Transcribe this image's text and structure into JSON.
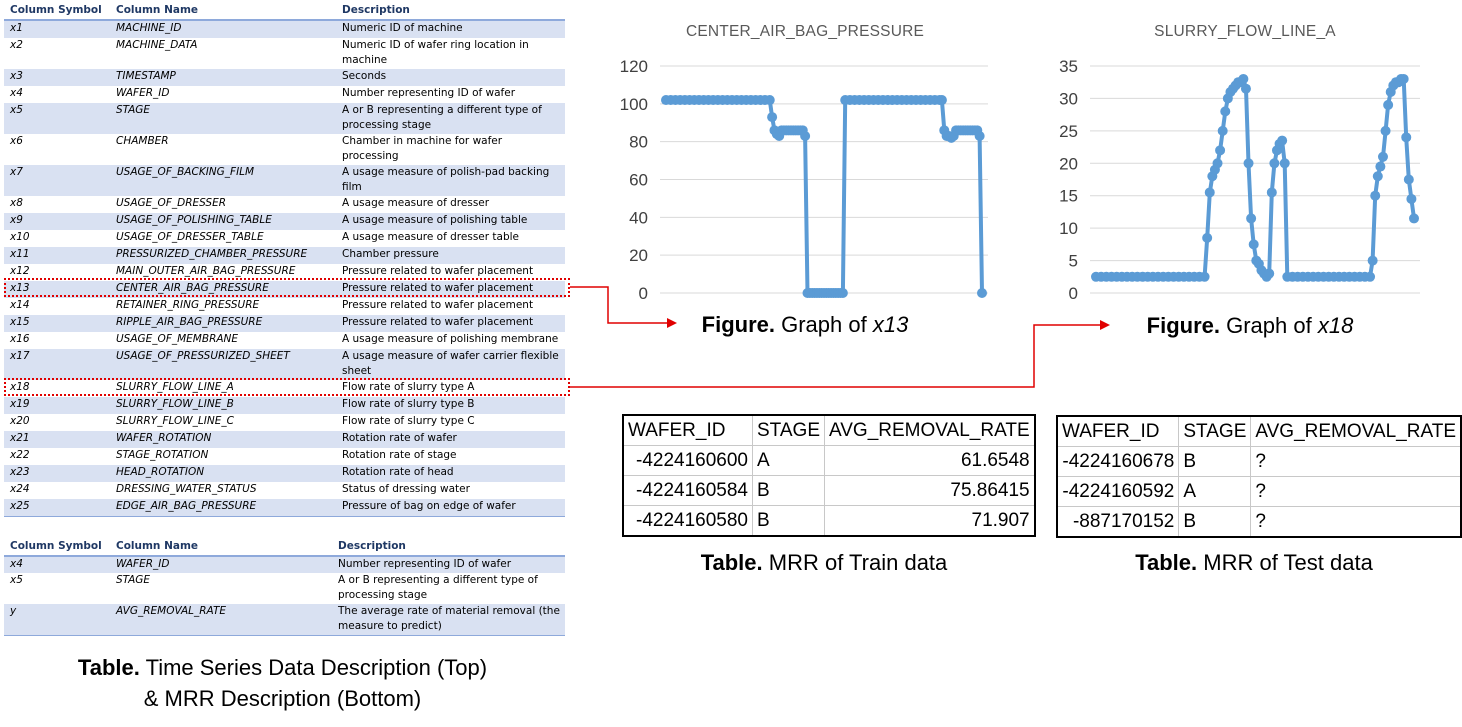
{
  "time_series_table": {
    "headers": [
      "Column Symbol",
      "Column Name",
      "Description"
    ],
    "rows": [
      {
        "symbol": "x1",
        "name": "MACHINE_ID",
        "description": "Numeric ID of machine"
      },
      {
        "symbol": "x2",
        "name": "MACHINE_DATA",
        "description": "Numeric ID of wafer ring location in machine"
      },
      {
        "symbol": "x3",
        "name": "TIMESTAMP",
        "description": "Seconds"
      },
      {
        "symbol": "x4",
        "name": "WAFER_ID",
        "description": "Number representing ID of wafer"
      },
      {
        "symbol": "x5",
        "name": "STAGE",
        "description": "A or B representing a different type of processing stage"
      },
      {
        "symbol": "x6",
        "name": "CHAMBER",
        "description": "Chamber in machine for wafer processing"
      },
      {
        "symbol": "x7",
        "name": "USAGE_OF_BACKING_FILM",
        "description": "A usage measure of polish-pad backing film"
      },
      {
        "symbol": "x8",
        "name": "USAGE_OF_DRESSER",
        "description": "A usage measure of dresser"
      },
      {
        "symbol": "x9",
        "name": "USAGE_OF_POLISHING_TABLE",
        "description": "A usage measure of polishing table"
      },
      {
        "symbol": "x10",
        "name": "USAGE_OF_DRESSER_TABLE",
        "description": "A usage measure of dresser table"
      },
      {
        "symbol": "x11",
        "name": "PRESSURIZED_CHAMBER_PRESSURE",
        "description": "Chamber pressure"
      },
      {
        "symbol": "x12",
        "name": "MAIN_OUTER_AIR_BAG_PRESSURE",
        "description": "Pressure related to wafer placement"
      },
      {
        "symbol": "x13",
        "name": "CENTER_AIR_BAG_PRESSURE",
        "description": "Pressure related to wafer placement"
      },
      {
        "symbol": "x14",
        "name": "RETAINER_RING_PRESSURE",
        "description": "Pressure related to wafer placement"
      },
      {
        "symbol": "x15",
        "name": "RIPPLE_AIR_BAG_PRESSURE",
        "description": "Pressure related to wafer placement"
      },
      {
        "symbol": "x16",
        "name": "USAGE_OF_MEMBRANE",
        "description": "A usage measure of polishing membrane"
      },
      {
        "symbol": "x17",
        "name": "USAGE_OF_PRESSURIZED_SHEET",
        "description": "A usage measure of wafer carrier flexible sheet"
      },
      {
        "symbol": "x18",
        "name": "SLURRY_FLOW_LINE_A",
        "description": "Flow rate of slurry type A"
      },
      {
        "symbol": "x19",
        "name": "SLURRY_FLOW_LINE_B",
        "description": "Flow rate of slurry type B"
      },
      {
        "symbol": "x20",
        "name": "SLURRY_FLOW_LINE_C",
        "description": "Flow rate of slurry type C"
      },
      {
        "symbol": "x21",
        "name": "WAFER_ROTATION",
        "description": "Rotation rate of wafer"
      },
      {
        "symbol": "x22",
        "name": "STAGE_ROTATION",
        "description": "Rotation rate of stage"
      },
      {
        "symbol": "x23",
        "name": "HEAD_ROTATION",
        "description": "Rotation rate of head"
      },
      {
        "symbol": "x24",
        "name": "DRESSING_WATER_STATUS",
        "description": "Status of dressing water"
      },
      {
        "symbol": "x25",
        "name": "EDGE_AIR_BAG_PRESSURE",
        "description": "Pressure of bag on edge of wafer"
      }
    ]
  },
  "mrr_desc_table": {
    "headers": [
      "Column Symbol",
      "Column Name",
      "Description"
    ],
    "rows": [
      {
        "symbol": "x4",
        "name": "WAFER_ID",
        "description": "Number representing ID of wafer"
      },
      {
        "symbol": "x5",
        "name": "STAGE",
        "description": "A or B representing a different type of processing stage"
      },
      {
        "symbol": "y",
        "name": "AVG_REMOVAL_RATE",
        "description": "The average rate of material removal (the measure to predict)"
      }
    ]
  },
  "captions": {
    "left_bold": "Table.",
    "left_line1": " Time Series Data Description (Top)",
    "left_line2": "& MRR Description (Bottom)",
    "fig1_bold": "Figure.",
    "fig1_text": " Graph of ",
    "fig1_var": "x13",
    "fig2_bold": "Figure.",
    "fig2_text": " Graph of ",
    "fig2_var": "x18",
    "train_bold": "Table.",
    "train_text": " MRR of Train data",
    "test_bold": "Table.",
    "test_text": " MRR of Test data"
  },
  "colors": {
    "series": "#5b9bd5",
    "highlight": "#e00000",
    "stripe": "#d9e1f2",
    "header_text": "#1f3864"
  },
  "chart_data": [
    {
      "type": "line",
      "title": "CENTER_AIR_BAG_PRESSURE",
      "ylim": [
        0,
        120
      ],
      "yticks": [
        0,
        20,
        40,
        60,
        80,
        100,
        120
      ],
      "grid": true,
      "legend": "none",
      "points": [
        [
          0,
          102
        ],
        [
          2,
          102
        ],
        [
          4,
          102
        ],
        [
          6,
          102
        ],
        [
          8,
          102
        ],
        [
          10,
          102
        ],
        [
          12,
          102
        ],
        [
          14,
          102
        ],
        [
          16,
          102
        ],
        [
          18,
          102
        ],
        [
          20,
          102
        ],
        [
          22,
          102
        ],
        [
          24,
          102
        ],
        [
          26,
          102
        ],
        [
          28,
          102
        ],
        [
          30,
          102
        ],
        [
          32,
          102
        ],
        [
          34,
          102
        ],
        [
          36,
          102
        ],
        [
          38,
          102
        ],
        [
          40,
          102
        ],
        [
          42,
          102
        ],
        [
          44,
          102
        ],
        [
          45,
          93
        ],
        [
          46,
          86
        ],
        [
          47,
          84
        ],
        [
          48,
          83
        ],
        [
          49,
          86
        ],
        [
          50,
          86
        ],
        [
          51,
          86
        ],
        [
          52,
          86
        ],
        [
          53,
          86
        ],
        [
          54,
          86
        ],
        [
          55,
          86
        ],
        [
          56,
          86
        ],
        [
          57,
          86
        ],
        [
          58,
          86
        ],
        [
          59,
          83
        ],
        [
          60,
          0
        ],
        [
          61,
          0
        ],
        [
          62,
          0
        ],
        [
          63,
          0
        ],
        [
          64,
          0
        ],
        [
          65,
          0
        ],
        [
          66,
          0
        ],
        [
          67,
          0
        ],
        [
          68,
          0
        ],
        [
          69,
          0
        ],
        [
          70,
          0
        ],
        [
          71,
          0
        ],
        [
          72,
          0
        ],
        [
          73,
          0
        ],
        [
          74,
          0
        ],
        [
          75,
          0
        ],
        [
          76,
          102
        ],
        [
          78,
          102
        ],
        [
          80,
          102
        ],
        [
          82,
          102
        ],
        [
          84,
          102
        ],
        [
          86,
          102
        ],
        [
          88,
          102
        ],
        [
          90,
          102
        ],
        [
          92,
          102
        ],
        [
          94,
          102
        ],
        [
          96,
          102
        ],
        [
          98,
          102
        ],
        [
          100,
          102
        ],
        [
          102,
          102
        ],
        [
          104,
          102
        ],
        [
          106,
          102
        ],
        [
          108,
          102
        ],
        [
          110,
          102
        ],
        [
          112,
          102
        ],
        [
          114,
          102
        ],
        [
          116,
          102
        ],
        [
          117,
          102
        ],
        [
          118,
          86
        ],
        [
          119,
          83
        ],
        [
          120,
          83
        ],
        [
          121,
          82
        ],
        [
          122,
          83
        ],
        [
          123,
          86
        ],
        [
          124,
          86
        ],
        [
          125,
          86
        ],
        [
          126,
          86
        ],
        [
          127,
          86
        ],
        [
          128,
          86
        ],
        [
          129,
          86
        ],
        [
          130,
          86
        ],
        [
          131,
          86
        ],
        [
          132,
          86
        ],
        [
          133,
          83
        ],
        [
          134,
          0
        ]
      ]
    },
    {
      "type": "line",
      "title": "SLURRY_FLOW_LINE_A",
      "ylim": [
        0,
        35
      ],
      "yticks": [
        0,
        5,
        10,
        15,
        20,
        25,
        30,
        35
      ],
      "grid": true,
      "legend": "none",
      "points": [
        [
          0,
          2.5
        ],
        [
          2,
          2.5
        ],
        [
          4,
          2.5
        ],
        [
          6,
          2.5
        ],
        [
          8,
          2.5
        ],
        [
          10,
          2.5
        ],
        [
          12,
          2.5
        ],
        [
          14,
          2.5
        ],
        [
          16,
          2.5
        ],
        [
          18,
          2.5
        ],
        [
          20,
          2.5
        ],
        [
          22,
          2.5
        ],
        [
          24,
          2.5
        ],
        [
          26,
          2.5
        ],
        [
          28,
          2.5
        ],
        [
          30,
          2.5
        ],
        [
          32,
          2.5
        ],
        [
          34,
          2.5
        ],
        [
          36,
          2.5
        ],
        [
          38,
          2.5
        ],
        [
          40,
          2.5
        ],
        [
          42,
          2.5
        ],
        [
          43,
          8.5
        ],
        [
          44,
          15.5
        ],
        [
          45,
          18
        ],
        [
          46,
          19
        ],
        [
          47,
          20
        ],
        [
          48,
          22
        ],
        [
          49,
          25
        ],
        [
          50,
          28
        ],
        [
          51,
          30
        ],
        [
          52,
          31
        ],
        [
          53,
          31.5
        ],
        [
          54,
          32
        ],
        [
          55,
          32.5
        ],
        [
          56,
          32.5
        ],
        [
          57,
          33
        ],
        [
          58,
          31.5
        ],
        [
          59,
          20
        ],
        [
          60,
          11.5
        ],
        [
          61,
          7.5
        ],
        [
          62,
          5
        ],
        [
          63,
          4.5
        ],
        [
          64,
          3.5
        ],
        [
          65,
          3
        ],
        [
          66,
          2.5
        ],
        [
          67,
          3
        ],
        [
          68,
          15.5
        ],
        [
          69,
          20
        ],
        [
          70,
          22
        ],
        [
          71,
          23
        ],
        [
          72,
          23.5
        ],
        [
          73,
          20
        ],
        [
          74,
          2.5
        ],
        [
          76,
          2.5
        ],
        [
          78,
          2.5
        ],
        [
          80,
          2.5
        ],
        [
          82,
          2.5
        ],
        [
          84,
          2.5
        ],
        [
          86,
          2.5
        ],
        [
          88,
          2.5
        ],
        [
          90,
          2.5
        ],
        [
          92,
          2.5
        ],
        [
          94,
          2.5
        ],
        [
          96,
          2.5
        ],
        [
          98,
          2.5
        ],
        [
          100,
          2.5
        ],
        [
          102,
          2.5
        ],
        [
          104,
          2.5
        ],
        [
          106,
          2.5
        ],
        [
          107,
          5
        ],
        [
          108,
          15
        ],
        [
          109,
          18
        ],
        [
          110,
          19.5
        ],
        [
          111,
          21
        ],
        [
          112,
          25
        ],
        [
          113,
          29
        ],
        [
          114,
          31
        ],
        [
          115,
          32
        ],
        [
          116,
          32.5
        ],
        [
          117,
          32.5
        ],
        [
          118,
          33
        ],
        [
          119,
          33
        ],
        [
          120,
          24
        ],
        [
          121,
          17.5
        ],
        [
          122,
          14.5
        ],
        [
          123,
          11.5
        ]
      ]
    }
  ],
  "train_table": {
    "headers": [
      "WAFER_ID",
      "STAGE",
      "AVG_REMOVAL_RATE"
    ],
    "rows": [
      {
        "wafer_id": "-4224160600",
        "stage": "A",
        "rate": "61.6548"
      },
      {
        "wafer_id": "-4224160584",
        "stage": "B",
        "rate": "75.86415"
      },
      {
        "wafer_id": "-4224160580",
        "stage": "B",
        "rate": "71.907"
      }
    ]
  },
  "test_table": {
    "headers": [
      "WAFER_ID",
      "STAGE",
      "AVG_REMOVAL_RATE"
    ],
    "rows": [
      {
        "wafer_id": "-4224160678",
        "stage": "B",
        "rate": "?"
      },
      {
        "wafer_id": "-4224160592",
        "stage": "A",
        "rate": "?"
      },
      {
        "wafer_id": "-887170152",
        "stage": "B",
        "rate": "?"
      }
    ]
  }
}
